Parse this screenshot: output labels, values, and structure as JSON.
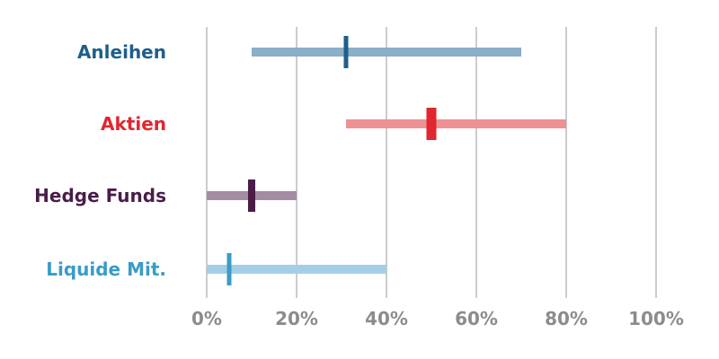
{
  "chart_data": {
    "type": "bar",
    "title": "",
    "xlabel": "",
    "ylabel": "",
    "xlim": [
      0,
      100
    ],
    "x_ticks": [
      0,
      20,
      40,
      60,
      80,
      100
    ],
    "x_tick_labels": [
      "0%",
      "20%",
      "40%",
      "60%",
      "80%",
      "100%"
    ],
    "grid": true,
    "categories": [
      "Anleihen",
      "Aktien",
      "Hedge Funds",
      "Liquide Mit."
    ],
    "series": [
      {
        "ranges": [
          [
            10,
            70
          ],
          [
            31,
            80
          ],
          [
            0,
            20
          ],
          [
            0,
            40
          ]
        ],
        "markers": [
          31,
          50,
          10,
          5
        ]
      }
    ],
    "colors": {
      "Anleihen": {
        "label": "#1f5f8b",
        "range": "#8aafc7",
        "marker": "#1f5f8b"
      },
      "Aktien": {
        "label": "#e0262f",
        "range": "#ee9194",
        "marker": "#e0262f"
      },
      "Hedge Funds": {
        "label": "#4a1d48",
        "range": "#a48da3",
        "marker": "#4a1d48"
      },
      "Liquide Mit.": {
        "label": "#3a9cc6",
        "range": "#a2cfe6",
        "marker": "#3a9cc6"
      }
    },
    "tick_color": "#8c8c8c",
    "grid_color": "#9a9a9a"
  }
}
